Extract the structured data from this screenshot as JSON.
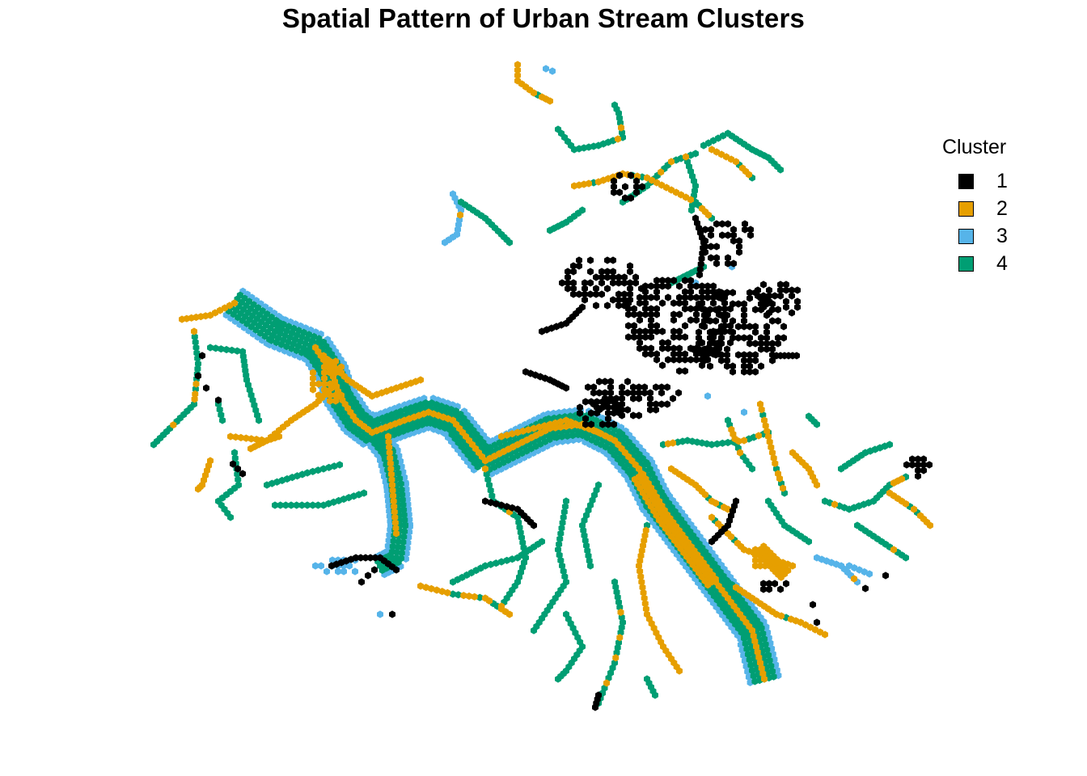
{
  "chart_data": {
    "type": "hexbin-map",
    "title": "Spatial Pattern of Urban Stream Clusters",
    "legend": {
      "title": "Cluster",
      "position": "right",
      "entries": [
        {
          "label": "1",
          "color": "#000000"
        },
        {
          "label": "2",
          "color": "#E69F00"
        },
        {
          "label": "3",
          "color": "#56B4E9"
        },
        {
          "label": "4",
          "color": "#009E73"
        }
      ]
    },
    "grid": false,
    "axes": "none"
  }
}
